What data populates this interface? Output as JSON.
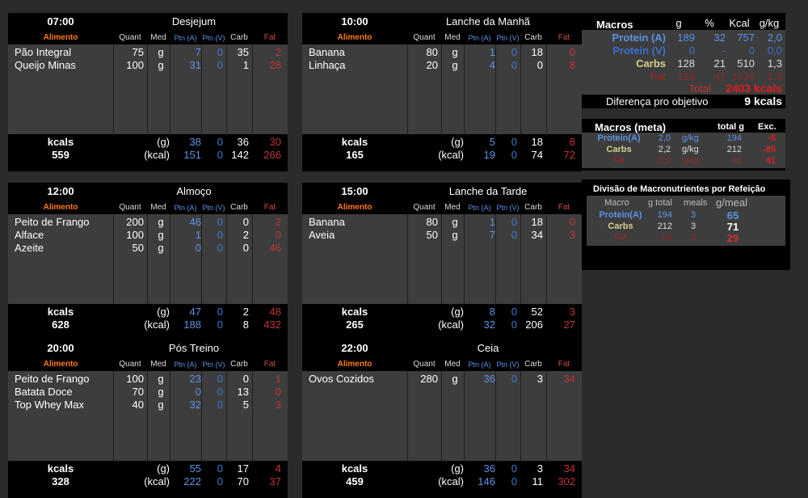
{
  "columns": {
    "alimento": "Alimento",
    "quant": "Quant",
    "med": "Med",
    "ptn_a": "Ptn (A)",
    "ptn_v": "Ptn (V)",
    "carb": "Carb",
    "fat": "Fat"
  },
  "footer_labels": {
    "kcals": "kcals",
    "g": "(g)",
    "kcal": "(kcal)"
  },
  "meals": [
    {
      "time": "07:00",
      "name": "Desjejum",
      "items": [
        {
          "food": "Pão Integral",
          "quant": "75",
          "med": "g",
          "pa": "7",
          "pv": "0",
          "carb": "35",
          "fat": "2"
        },
        {
          "food": "Queijo Minas",
          "quant": "100",
          "med": "g",
          "pa": "31",
          "pv": "0",
          "carb": "1",
          "fat": "28"
        }
      ],
      "total_kcal": "559",
      "g": {
        "pa": "38",
        "pv": "0",
        "carb": "36",
        "fat": "30"
      },
      "kcal": {
        "pa": "151",
        "pv": "0",
        "carb": "142",
        "fat": "266"
      }
    },
    {
      "time": "10:00",
      "name": "Lanche da Manhã",
      "items": [
        {
          "food": "Banana",
          "quant": "80",
          "med": "g",
          "pa": "1",
          "pv": "0",
          "carb": "18",
          "fat": "0"
        },
        {
          "food": "Linhaça",
          "quant": "20",
          "med": "g",
          "pa": "4",
          "pv": "0",
          "carb": "0",
          "fat": "8"
        }
      ],
      "total_kcal": "165",
      "g": {
        "pa": "5",
        "pv": "0",
        "carb": "18",
        "fat": "8"
      },
      "kcal": {
        "pa": "19",
        "pv": "0",
        "carb": "74",
        "fat": "72"
      }
    },
    {
      "time": "12:00",
      "name": "Almoço",
      "items": [
        {
          "food": "Peito de Frango",
          "quant": "200",
          "med": "g",
          "pa": "46",
          "pv": "0",
          "carb": "0",
          "fat": "2"
        },
        {
          "food": "Alface",
          "quant": "100",
          "med": "g",
          "pa": "1",
          "pv": "0",
          "carb": "2",
          "fat": "0"
        },
        {
          "food": "Azeite",
          "quant": "50",
          "med": "g",
          "pa": "0",
          "pv": "0",
          "carb": "0",
          "fat": "46"
        }
      ],
      "total_kcal": "628",
      "g": {
        "pa": "47",
        "pv": "0",
        "carb": "2",
        "fat": "48"
      },
      "kcal": {
        "pa": "188",
        "pv": "0",
        "carb": "8",
        "fat": "432"
      }
    },
    {
      "time": "15:00",
      "name": "Lanche da Tarde",
      "items": [
        {
          "food": "Banana",
          "quant": "80",
          "med": "g",
          "pa": "1",
          "pv": "0",
          "carb": "18",
          "fat": "0"
        },
        {
          "food": "Aveia",
          "quant": "50",
          "med": "g",
          "pa": "7",
          "pv": "0",
          "carb": "34",
          "fat": "3"
        }
      ],
      "total_kcal": "265",
      "g": {
        "pa": "8",
        "pv": "0",
        "carb": "52",
        "fat": "3"
      },
      "kcal": {
        "pa": "32",
        "pv": "0",
        "carb": "206",
        "fat": "27"
      }
    },
    {
      "time": "20:00",
      "name": "Pós Treino",
      "items": [
        {
          "food": "Peito de Frango",
          "quant": "100",
          "med": "g",
          "pa": "23",
          "pv": "0",
          "carb": "0",
          "fat": "1"
        },
        {
          "food": "Batata Doce",
          "quant": "70",
          "med": "g",
          "pa": "0",
          "pv": "0",
          "carb": "13",
          "fat": "0"
        },
        {
          "food": "Top Whey Max",
          "quant": "40",
          "med": "g",
          "pa": "32",
          "pv": "0",
          "carb": "5",
          "fat": "3"
        }
      ],
      "total_kcal": "328",
      "g": {
        "pa": "55",
        "pv": "0",
        "carb": "17",
        "fat": "4"
      },
      "kcal": {
        "pa": "222",
        "pv": "0",
        "carb": "70",
        "fat": "37"
      }
    },
    {
      "time": "22:00",
      "name": "Ceia",
      "items": [
        {
          "food": "Ovos Cozidos",
          "quant": "280",
          "med": "g",
          "pa": "36",
          "pv": "0",
          "carb": "3",
          "fat": "34"
        }
      ],
      "total_kcal": "459",
      "g": {
        "pa": "36",
        "pv": "0",
        "carb": "3",
        "fat": "34"
      },
      "kcal": {
        "pa": "146",
        "pv": "0",
        "carb": "11",
        "fat": "302"
      }
    }
  ],
  "macros": {
    "title": "Macros",
    "h_g": "g",
    "h_pct": "%",
    "h_kcal": "Kcal",
    "h_gkg": "g/kg",
    "rows": [
      {
        "label": "Protein (A)",
        "g": "189",
        "pct": "32",
        "kcal": "757",
        "gkg": "2,0"
      },
      {
        "label": "Protein (V)",
        "g": "0",
        "pct": "-",
        "kcal": "0",
        "gkg": "0,0"
      },
      {
        "label": "Carbs",
        "g": "128",
        "pct": "21",
        "kcal": "510",
        "gkg": "1,3"
      },
      {
        "label": "Fat",
        "g": "126",
        "pct": "47",
        "kcal": "1136",
        "gkg": "1,3"
      }
    ],
    "total_label": "Total",
    "total_value": "2403 kcals",
    "diff_label": "Diferença pro objetivo",
    "diff_value": "9 kcals"
  },
  "meta": {
    "title": "Macros (meta)",
    "h_total": "total g",
    "h_exc": "Exc.",
    "rows": [
      {
        "label": "Protein(A)",
        "val": "2,0",
        "unit": "g/kg",
        "total": "194",
        "exc": "-5"
      },
      {
        "label": "Carbs",
        "val": "2,2",
        "unit": "g/kg",
        "total": "212",
        "exc": "-85"
      },
      {
        "label": "Fat",
        "val": "0,9",
        "unit": "g/kg",
        "total": "86",
        "exc": "41"
      }
    ]
  },
  "division": {
    "title": "Divisão de Macronutrientes por Refeição",
    "h_macro": "Macro",
    "h_gtotal": "g total",
    "h_meals": "meals",
    "h_gmeal": "g/meal",
    "rows": [
      {
        "label": "Protein(A)",
        "gtotal": "194",
        "meals": "3",
        "gmeal": "65"
      },
      {
        "label": "Carbs",
        "gtotal": "212",
        "meals": "3",
        "gmeal": "71"
      },
      {
        "label": "Fat",
        "gtotal": "86",
        "meals": "3",
        "gmeal": "29"
      }
    ]
  },
  "colors": {
    "protein": "#5c93e6",
    "carbs": "#d6d08a",
    "fat": "#c53333",
    "alimento": "#ff7a1a",
    "bg": "#2b2b2b"
  }
}
